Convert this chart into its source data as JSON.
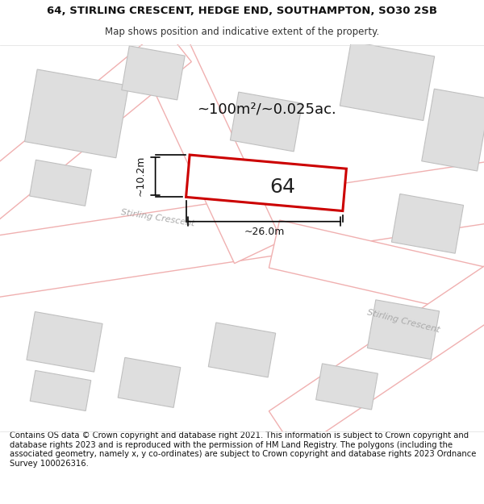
{
  "title_line1": "64, STIRLING CRESCENT, HEDGE END, SOUTHAMPTON, SO30 2SB",
  "title_line2": "Map shows position and indicative extent of the property.",
  "footer_text": "Contains OS data © Crown copyright and database right 2021. This information is subject to Crown copyright and database rights 2023 and is reproduced with the permission of HM Land Registry. The polygons (including the associated geometry, namely x, y co-ordinates) are subject to Crown copyright and database rights 2023 Ordnance Survey 100026316.",
  "area_label": "~100m²/~0.025ac.",
  "width_label": "~26.0m",
  "height_label": "~10.2m",
  "plot_number": "64",
  "bg_color": "#ffffff",
  "map_bg": "#f7f2f2",
  "plot_fill": "#ffffff",
  "plot_edge": "#cc0000",
  "building_fill": "#dedede",
  "building_edge": "#c0c0c0",
  "road_fill": "#ffffff",
  "road_outline": "#f0b0b0",
  "dim_color": "#111111",
  "label_color": "#111111",
  "road_text_color": "#aaaaaa",
  "title_fontsize": 9.5,
  "subtitle_fontsize": 8.5,
  "footer_fontsize": 7.2,
  "area_fontsize": 13,
  "plot_num_fontsize": 18,
  "dim_fontsize": 9
}
